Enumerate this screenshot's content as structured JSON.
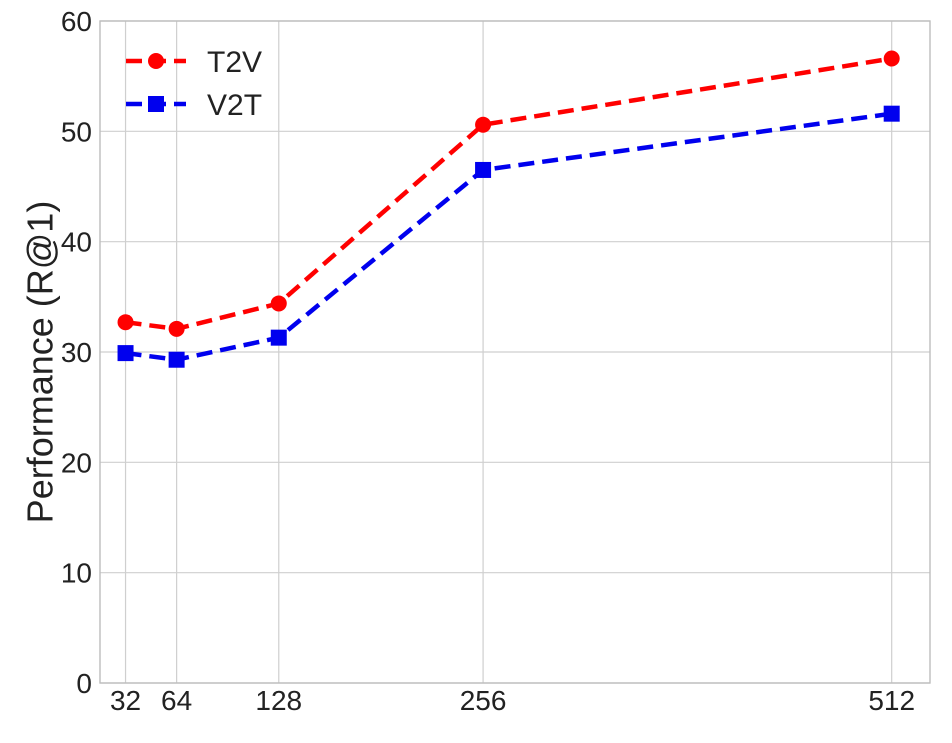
{
  "chart_data": {
    "type": "line",
    "title": "",
    "xlabel": "",
    "ylabel": "Performance (R@1)",
    "x": [
      32,
      64,
      128,
      256,
      512
    ],
    "xtick_labels": [
      "32",
      "64",
      "128",
      "256",
      "512"
    ],
    "ylim": [
      0,
      60
    ],
    "yticks": [
      0,
      10,
      20,
      30,
      40,
      50,
      60
    ],
    "grid": true,
    "legend_position": "top-left",
    "series": [
      {
        "name": "T2V",
        "values": [
          32.7,
          32.1,
          34.4,
          50.6,
          56.6
        ],
        "color": "#ff0000",
        "marker": "circle",
        "line_style": "dashed"
      },
      {
        "name": "V2T",
        "values": [
          29.9,
          29.3,
          31.3,
          46.5,
          51.6
        ],
        "color": "#0000ee",
        "marker": "square",
        "line_style": "dashed"
      }
    ]
  }
}
